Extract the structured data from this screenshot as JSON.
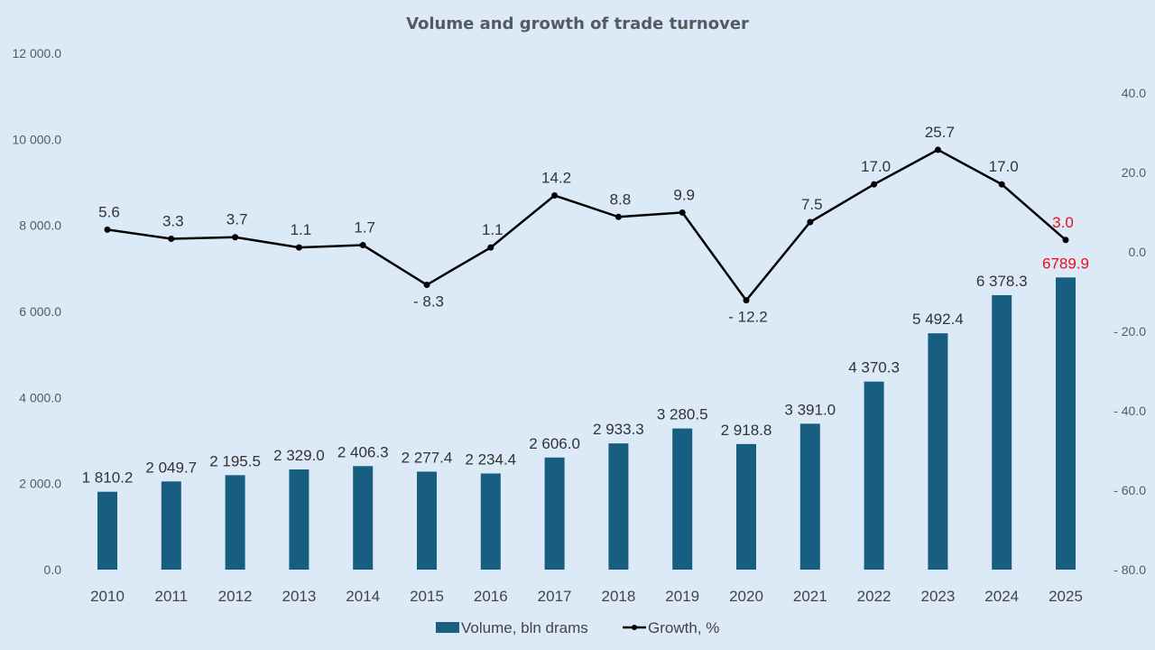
{
  "chart_data": {
    "type": "bar+line",
    "title": "Volume and growth of trade turnover",
    "categories": [
      "2010",
      "2011",
      "2012",
      "2013",
      "2014",
      "2015",
      "2016",
      "2017",
      "2018",
      "2019",
      "2020",
      "2021",
      "2022",
      "2023",
      "2024",
      "2025"
    ],
    "series": [
      {
        "name": "Volume, bln drams",
        "type": "bar",
        "axis": "left",
        "color": "#175e80",
        "values": [
          1810.2,
          2049.7,
          2195.5,
          2329.0,
          2406.3,
          2277.4,
          2234.4,
          2606.0,
          2933.3,
          3280.5,
          2918.8,
          3391.0,
          4370.3,
          5492.4,
          6378.3,
          6789.9
        ],
        "labels": [
          "1 810.2",
          "2 049.7",
          "2 195.5",
          "2 329.0",
          "2 406.3",
          "2 277.4",
          "2 234.4",
          "2 606.0",
          "2 933.3",
          "3 280.5",
          "2 918.8",
          "3 391.0",
          "4 370.3",
          "5 492.4",
          "6 378.3",
          "6789.9"
        ]
      },
      {
        "name": "Growth, %",
        "type": "line",
        "axis": "right",
        "color": "#000000",
        "values": [
          5.6,
          3.3,
          3.7,
          1.1,
          1.7,
          -8.3,
          1.1,
          14.2,
          8.8,
          9.9,
          -12.2,
          7.5,
          17.0,
          25.7,
          17.0,
          3.0
        ],
        "labels": [
          "5.6",
          "3.3",
          "3.7",
          "1.1",
          "1.7",
          "- 8.3",
          "1.1",
          "14.2",
          "8.8",
          "9.9",
          "- 12.2",
          "7.5",
          "17.0",
          "25.7",
          "17.0",
          "3.0"
        ]
      }
    ],
    "highlight_index": 15,
    "highlight_color": "#e8101a",
    "y_left": {
      "range": [
        0,
        12000
      ],
      "ticks": [
        0,
        2000,
        4000,
        6000,
        8000,
        10000,
        12000
      ],
      "tick_labels": [
        "0.0",
        "2 000.0",
        "4 000.0",
        "6 000.0",
        "8 000.0",
        "10 000.0",
        "12 000.0"
      ]
    },
    "y_right": {
      "range": [
        -80,
        40
      ],
      "ticks": [
        -80,
        -60,
        -40,
        -20,
        0,
        20,
        40
      ],
      "tick_labels": [
        "- 80.0",
        "- 60.0",
        "- 40.0",
        "- 20.0",
        "0.0",
        "20.0",
        "40.0"
      ]
    },
    "grid": false,
    "legend": {
      "placement": "bottom",
      "items": [
        "Volume, bln drams",
        "Growth, %"
      ]
    }
  }
}
